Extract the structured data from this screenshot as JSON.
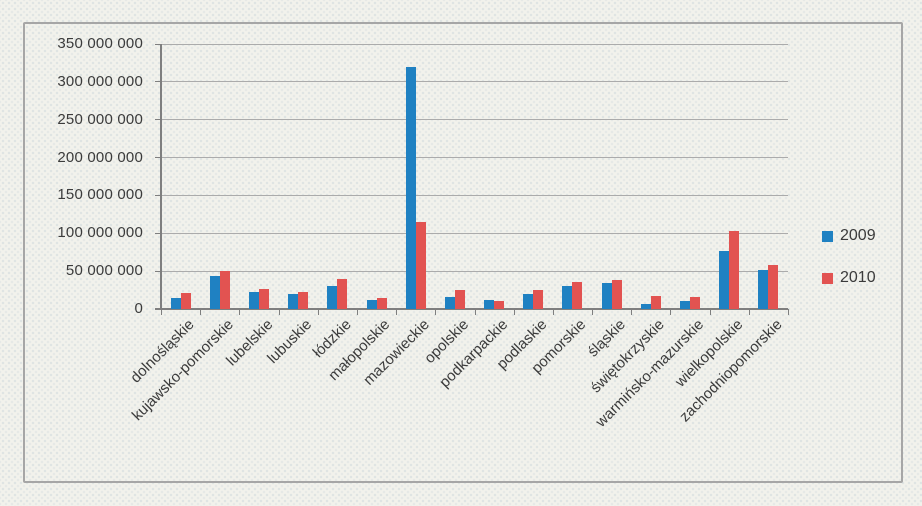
{
  "chart_data": {
    "type": "bar",
    "title": "",
    "xlabel": "",
    "ylabel": "",
    "categories": [
      "dolnośląskie",
      "kujawsko-pomorskie",
      "lubelskie",
      "lubuskie",
      "łódzkie",
      "małopolskie",
      "mazowieckie",
      "opolskie",
      "podkarpackie",
      "podlaskie",
      "pomorskie",
      "śląskie",
      "świętokrzyskie",
      "warmińsko-mazurskie",
      "wielkopolskie",
      "zachodniopomorskie"
    ],
    "series": [
      {
        "name": "2009",
        "color": "#1F81C2",
        "values": [
          15000000,
          44000000,
          23000000,
          20000000,
          31000000,
          12000000,
          320000000,
          16000000,
          12000000,
          20000000,
          30000000,
          34000000,
          6000000,
          11000000,
          76000000,
          51000000
        ]
      },
      {
        "name": "2010",
        "color": "#E25351",
        "values": [
          21000000,
          50000000,
          27000000,
          22000000,
          39000000,
          14000000,
          115000000,
          25000000,
          11000000,
          25000000,
          35000000,
          38000000,
          17000000,
          16000000,
          103000000,
          58000000
        ]
      }
    ],
    "ylim": [
      0,
      350000000
    ],
    "ytick_step": 50000000,
    "ytick_labels": [
      "0",
      "50 000 000",
      "100 000 000",
      "150 000 000",
      "200 000 000",
      "250 000 000",
      "300 000 000",
      "350 000 000"
    ],
    "grid": true,
    "legend_position": "right",
    "legend_entries": [
      "2009",
      "2010"
    ]
  },
  "colors": {
    "bar_2009": "#1F81C2",
    "bar_2010": "#E25351",
    "gridline": "#ABABAB",
    "axis": "#7F7F7F",
    "frame_border": "#A6A6A6",
    "background": "#F2F2EC",
    "text": "#3B3B3B"
  }
}
